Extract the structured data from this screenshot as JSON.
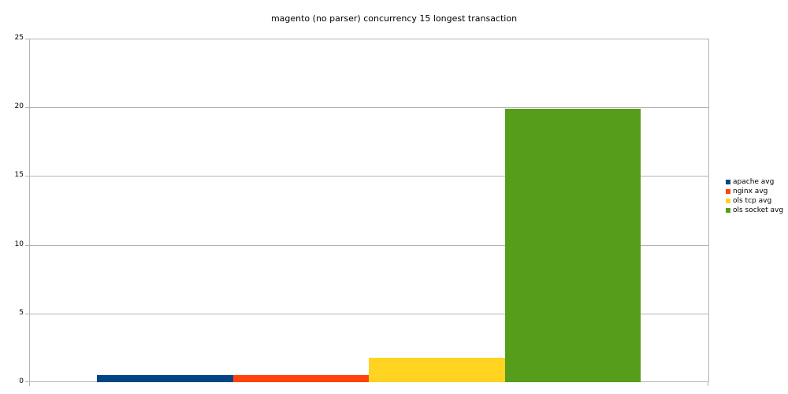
{
  "chart_data": {
    "type": "bar",
    "title": "magento (no parser) concurrency 15 longest transaction",
    "xlabel": "",
    "ylabel": "",
    "ylim": [
      0,
      25
    ],
    "yticks": [
      0,
      5,
      10,
      15,
      20,
      25
    ],
    "grid": true,
    "legend_position": "right",
    "categories": [
      ""
    ],
    "series": [
      {
        "name": "apache avg",
        "color": "#004586",
        "values": [
          0.52
        ]
      },
      {
        "name": "nginx avg",
        "color": "#ff420e",
        "values": [
          0.52
        ]
      },
      {
        "name": "ols tcp avg",
        "color": "#ffd320",
        "values": [
          1.78
        ]
      },
      {
        "name": "ols socket avg",
        "color": "#579d1c",
        "values": [
          19.9
        ]
      }
    ]
  },
  "labels": {
    "title": "magento (no parser) concurrency 15 longest transaction",
    "yticks": [
      "0",
      "5",
      "10",
      "15",
      "20",
      "25"
    ],
    "legend": [
      "apache avg",
      "nginx avg",
      "ols tcp avg",
      "ols socket avg"
    ]
  }
}
